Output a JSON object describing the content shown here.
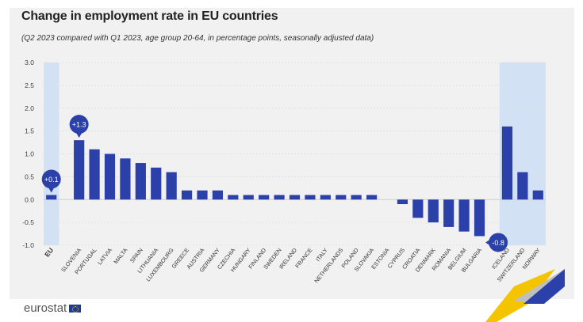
{
  "branding": {
    "logo_text": "eurostat"
  },
  "colors": {
    "bar": "#2b40a8",
    "highlight": "#d3e1f4",
    "callout": "#2b40a8",
    "panel": "#f1f1f1",
    "ribbon_blue": "#2b40a8",
    "ribbon_yellow": "#f5c400"
  },
  "chart_data": {
    "type": "bar",
    "title": "Change in employment rate in EU countries",
    "subtitle": "(Q2 2023 compared with Q1 2023, age group 20-64, in percentage points, seasonally adjusted data)",
    "ylim": [
      -1.0,
      3.0
    ],
    "yticks": [
      "3.0",
      "2.5",
      "2.0",
      "1.5",
      "1.0",
      "0.5",
      "0.0",
      "-0.5",
      "-1.0"
    ],
    "grid": true,
    "categories": [
      "EU",
      "SLOVENIA",
      "PORTUGAL",
      "LATVIA",
      "MALTA",
      "SPAIN",
      "LITHUANIA",
      "LUXEMBOURG",
      "GREECE",
      "AUSTRIA",
      "GERMANY",
      "CZECHIA",
      "HUNGARY",
      "FINLAND",
      "SWEDEN",
      "IRELAND",
      "FRANCE",
      "ITALY",
      "NETHERLANDS",
      "POLAND",
      "SLOVAKIA",
      "ESTONIA",
      "CYPRUS",
      "CROATIA",
      "DENMARK",
      "ROMANIA",
      "BELGIUM",
      "BULGARIA",
      "ICELAND",
      "SWITZERLAND",
      "NORWAY"
    ],
    "values": [
      0.1,
      1.3,
      1.1,
      1.0,
      0.9,
      0.8,
      0.7,
      0.6,
      0.2,
      0.2,
      0.2,
      0.1,
      0.1,
      0.1,
      0.1,
      0.1,
      0.1,
      0.1,
      0.1,
      0.1,
      0.1,
      0.0,
      -0.1,
      -0.4,
      -0.5,
      -0.6,
      -0.7,
      -0.8,
      1.6,
      0.6,
      0.2
    ],
    "highlighted": [
      "EU",
      "ICELAND",
      "SWITZERLAND",
      "NORWAY"
    ],
    "bold_categories": [
      "EU"
    ],
    "gap_after": [
      "EU",
      "BULGARIA"
    ],
    "annotations": [
      {
        "category": "EU",
        "label": "+0.1"
      },
      {
        "category": "SLOVENIA",
        "label": "+1.3"
      },
      {
        "category": "BULGARIA",
        "label": "-0.8"
      }
    ]
  }
}
